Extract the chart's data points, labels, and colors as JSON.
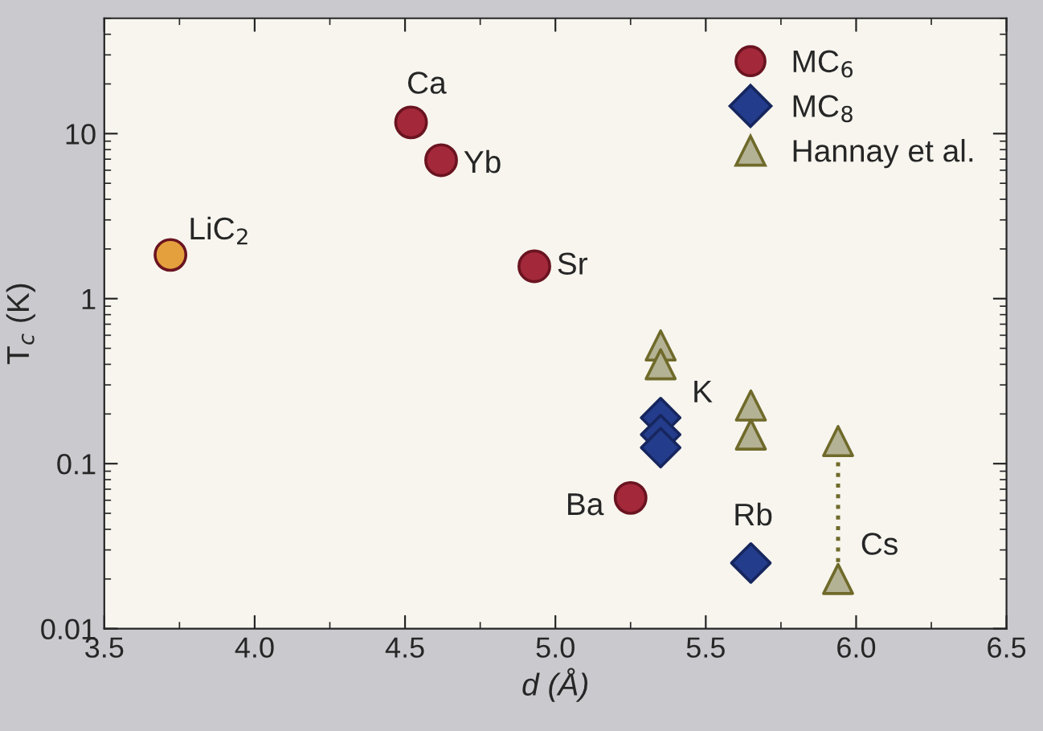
{
  "chart_data": {
    "type": "scatter",
    "xlabel": "d (Å)",
    "ylabel": "T$_{c}$ (K)",
    "xlim": [
      3.5,
      6.5
    ],
    "xticks": [
      {
        "value": 3.5,
        "label": "3.5"
      },
      {
        "value": 4.0,
        "label": "4.0"
      },
      {
        "value": 4.5,
        "label": "4.5"
      },
      {
        "value": 5.0,
        "label": "5.0"
      },
      {
        "value": 5.5,
        "label": "5.5"
      },
      {
        "value": 6.0,
        "label": "6.0"
      },
      {
        "value": 6.5,
        "label": "6.5"
      }
    ],
    "ylim": [
      0.01,
      50
    ],
    "yticks": [
      0.01,
      0.1,
      1,
      10
    ],
    "log": "y",
    "grid": false,
    "legend": "top right",
    "series": [
      {
        "type": "line",
        "color": "#6f6a2a",
        "line_style": "dotted",
        "marker": "none",
        "x": [
          5.94,
          5.94
        ],
        "values": [
          0.137,
          0.02
        ]
      },
      {
        "name": "MC$_{6}$",
        "color": "#a3283a",
        "marker": "circle",
        "x": [
          4.52,
          4.62,
          4.93,
          5.25
        ],
        "values": [
          11.7,
          6.9,
          1.57,
          0.062
        ]
      },
      {
        "name": "MC$_{8}$",
        "color": "#243c8c",
        "marker": "diamond",
        "x": [
          5.35,
          5.35,
          5.35,
          5.65
        ],
        "values": [
          0.19,
          0.15,
          0.125,
          0.025
        ]
      },
      {
        "name": "Hannay et al.",
        "color": "#b4b294",
        "marker": "triangle",
        "x": [
          5.35,
          5.35,
          5.65,
          5.65,
          5.94,
          5.94
        ],
        "values": [
          0.52,
          0.4,
          0.225,
          0.15,
          0.137,
          0.02
        ]
      },
      {
        "color": "#e4a03c",
        "marker": "circle",
        "x": [
          3.72
        ],
        "values": [
          1.84
        ]
      }
    ],
    "annotations": [
      {
        "text": "LiC$_{2}$",
        "x": 3.72,
        "y": 1.84
      },
      {
        "text": "Ca",
        "x": 4.52,
        "y": 11.7
      },
      {
        "text": "Yb",
        "x": 4.62,
        "y": 6.9
      },
      {
        "text": "Sr",
        "x": 4.93,
        "y": 1.57
      },
      {
        "text": "Ba",
        "x": 5.25,
        "y": 0.062
      },
      {
        "text": "K",
        "x": 5.35,
        "y": 0.19
      },
      {
        "text": "Rb",
        "x": 5.65,
        "y": 0.025
      },
      {
        "text": "Cs",
        "x": 5.94,
        "y": 0.02
      }
    ]
  }
}
